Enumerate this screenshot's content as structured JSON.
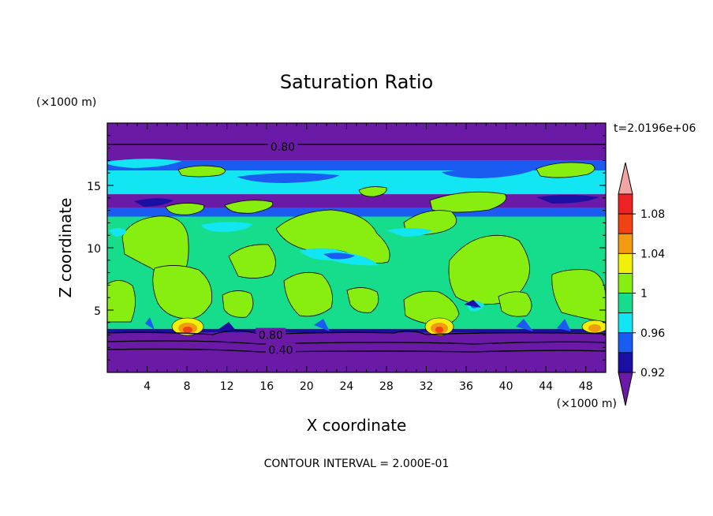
{
  "chart_data": {
    "type": "heatmap",
    "title": "Saturation Ratio",
    "xlabel": "X coordinate",
    "ylabel": "Z coordinate",
    "x_unit": "(×1000 m)",
    "z_unit": "(×1000 m)",
    "time_label": "t=2.0196e+06",
    "footer": "CONTOUR INTERVAL = 2.000E-01",
    "xlim": [
      0,
      50
    ],
    "zlim": [
      0,
      20
    ],
    "x_ticks": [
      4,
      8,
      12,
      16,
      20,
      24,
      28,
      32,
      36,
      40,
      44,
      48
    ],
    "z_ticks": [
      5,
      10,
      15
    ],
    "contour_labels": [
      {
        "text": "0.80",
        "x": 17.6,
        "z": 18.1
      },
      {
        "text": "0.80",
        "x": 16.4,
        "z": 3.0
      },
      {
        "text": "0.40",
        "x": 17.4,
        "z": 1.8
      }
    ],
    "colorbar": {
      "levels": [
        0.92,
        0.94,
        0.96,
        0.98,
        1.0,
        1.02,
        1.04,
        1.06,
        1.08,
        1.1
      ],
      "tick_labels": [
        "0.92",
        "0.96",
        "1",
        "1.04",
        "1.08"
      ],
      "colors": [
        "#6a1aa6",
        "#1a0ea3",
        "#1a5cf2",
        "#12e6f2",
        "#16dd8c",
        "#88ee0f",
        "#f0f00a",
        "#f29a10",
        "#f04212",
        "#ee2222",
        "#f2a3a3"
      ],
      "extend": "both"
    },
    "bands": [
      {
        "z0": 0.0,
        "z1": 3.2,
        "level": "<0.92"
      },
      {
        "z0": 3.2,
        "z1": 3.5,
        "level": "0.92"
      },
      {
        "z0": 3.5,
        "z1": 12.5,
        "level": "1.00"
      },
      {
        "z0": 12.5,
        "z1": 13.2,
        "level": "0.96"
      },
      {
        "z0": 13.2,
        "z1": 14.3,
        "level": "<0.92"
      },
      {
        "z0": 14.3,
        "z1": 16.2,
        "level": "0.98"
      },
      {
        "z0": 16.2,
        "z1": 17.0,
        "level": "0.96"
      },
      {
        "z0": 17.0,
        "z1": 20.0,
        "level": "<0.92"
      }
    ]
  }
}
